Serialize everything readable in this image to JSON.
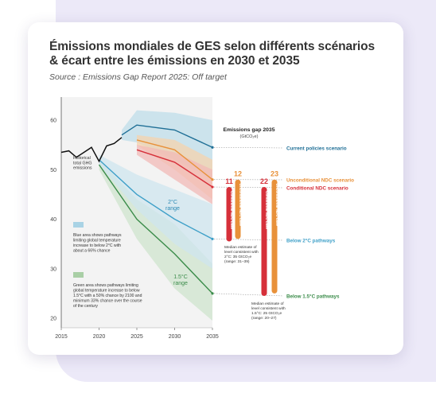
{
  "header": {
    "title_line1": "Émissions mondiales de GES selon différents scénarios",
    "title_line2": "& écart entre les émissions en 2030 et 2035",
    "source": "Source : Emissions Gap Report 2025: Off target"
  },
  "chart_data": {
    "type": "line",
    "xlim": [
      2015,
      2035
    ],
    "ylim": [
      18,
      62
    ],
    "x_ticks": [
      "2015",
      "2020",
      "2025",
      "2030",
      "2035"
    ],
    "y_ticks": [
      "20",
      "30",
      "40",
      "50",
      "60"
    ],
    "historical": {
      "label": "Historical total GHG emissions",
      "x": [
        2015,
        2016,
        2017,
        2018,
        2019,
        2020,
        2021,
        2022,
        2023
      ],
      "y": [
        53.5,
        53.8,
        52.5,
        53.5,
        54.5,
        51.7,
        54.8,
        55.3,
        56.5
      ]
    },
    "series": [
      {
        "name": "Current policies scenario",
        "color": "#1f6f96",
        "x": [
          2023,
          2025,
          2030,
          2035
        ],
        "y": [
          57,
          59,
          58,
          54.5
        ],
        "band_low": [
          56,
          55.5,
          52,
          48
        ],
        "band_high": [
          58,
          62,
          61.5,
          60
        ]
      },
      {
        "name": "Unconditional NDC scenario",
        "color": "#e8913a",
        "x": [
          2025,
          2030,
          2035
        ],
        "y": [
          56,
          54,
          48
        ],
        "band_low": [
          55,
          50,
          44
        ],
        "band_high": [
          57,
          56,
          52
        ]
      },
      {
        "name": "Conditional NDC scenario",
        "color": "#d6303a",
        "x": [
          2025,
          2030,
          2035
        ],
        "y": [
          54,
          51.5,
          46.5
        ],
        "band_low": [
          53,
          48,
          43
        ],
        "band_high": [
          55,
          53.5,
          50
        ]
      },
      {
        "name": "Below 2°C pathways",
        "color": "#3fa0c8",
        "x": [
          2020,
          2025,
          2030,
          2035
        ],
        "y": [
          52,
          45,
          40,
          36
        ],
        "band_low": [
          51,
          42,
          35,
          30
        ],
        "band_high": [
          53,
          49,
          46,
          43
        ]
      },
      {
        "name": "Below 1.5°C pathways",
        "color": "#3b8c4a",
        "x": [
          2020,
          2025,
          2030,
          2035
        ],
        "y": [
          51,
          40,
          33,
          25
        ],
        "band_low": [
          50,
          36,
          26,
          19.5
        ],
        "band_high": [
          52,
          44,
          39,
          31
        ]
      }
    ],
    "gap_panel": {
      "title": "Emissions gap 2035",
      "unit": "(GtCO₂e)",
      "bars": [
        {
          "value": 11,
          "label": "Conditional NDC case",
          "color": "#d6303a",
          "top": 46.5,
          "bottom": 35.5
        },
        {
          "value": 12,
          "label": "Unconditional NDC case",
          "color": "#e8913a",
          "top": 48,
          "bottom": 36
        },
        {
          "value": 22,
          "label": "Conditional NDC case",
          "color": "#d6303a",
          "top": 46.5,
          "bottom": 24.5
        },
        {
          "value": 23,
          "label": "Unconditional NDC case",
          "color": "#e8913a",
          "top": 48,
          "bottom": 25
        }
      ],
      "note_2c": [
        "Median estimate of",
        "level consistent with",
        "2°C: 35 GtCO₂e",
        "(range: 31–39)"
      ],
      "note_15c": [
        "Median estimate of",
        "level consistent with",
        "1.5°C: 25 GtCO₂e",
        "(range: 20–27)"
      ]
    },
    "annotations": {
      "historical": [
        "Historical",
        "total GHG",
        "emissions"
      ],
      "range_2c": [
        "2°C",
        "range"
      ],
      "range_15c": [
        "1.5°C",
        "range"
      ],
      "blue_note": [
        "Blue area shows pathways",
        "limiting global temperature",
        "increase to below 2°C with",
        "about a 66% chance"
      ],
      "green_note": [
        "Green area shows pathways limiting",
        "global temperature increase to below",
        "1.5°C with a 50% chance by 2100 and",
        "minimum 33% chance over the course",
        "of the century"
      ]
    }
  }
}
